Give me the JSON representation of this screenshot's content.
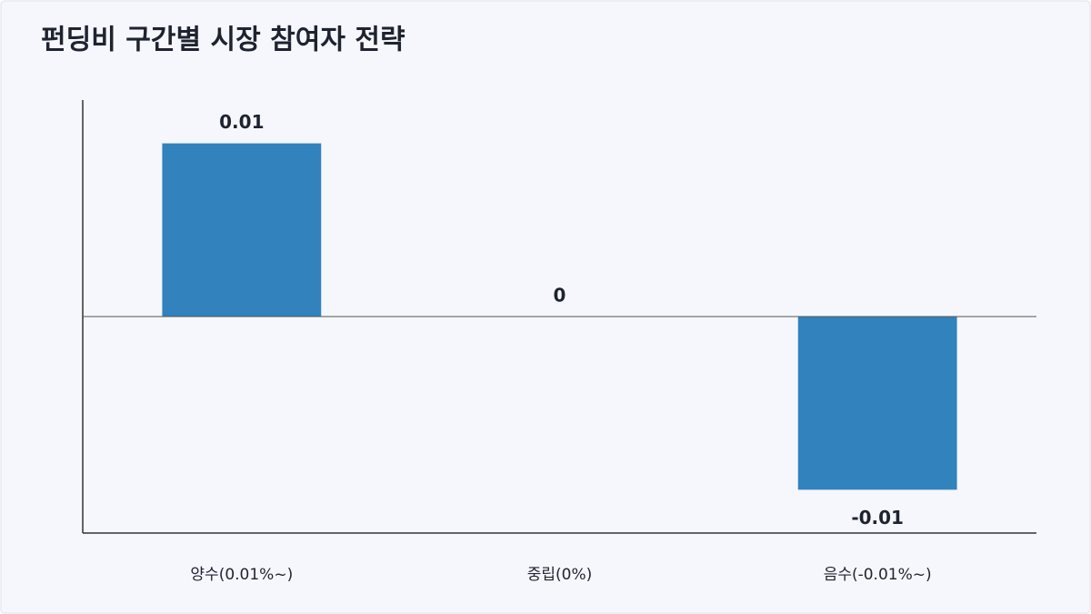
{
  "chart_data": {
    "type": "bar",
    "title": "펀딩비 구간별 시장 참여자 전략",
    "categories": [
      "양수(0.01%~)",
      "중립(0%)",
      "음수(-0.01%~)"
    ],
    "values": [
      0.01,
      0,
      -0.01
    ],
    "color": "#3182bd",
    "ylim": [
      -0.0125,
      0.0125
    ]
  }
}
